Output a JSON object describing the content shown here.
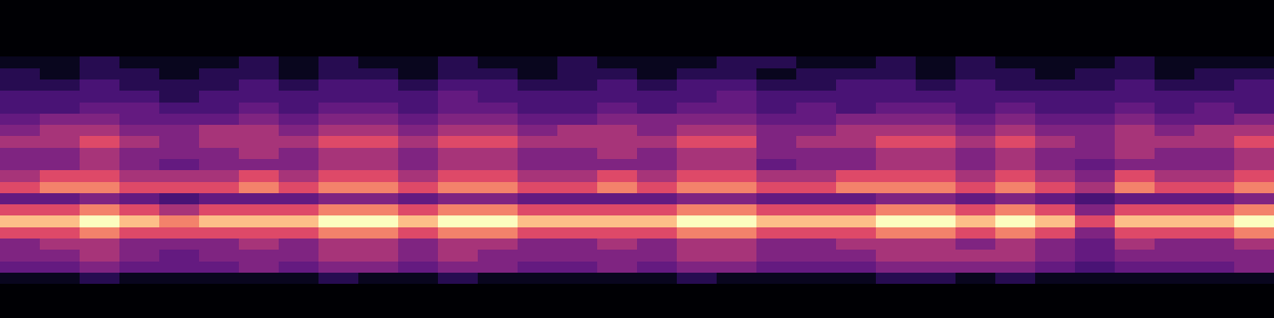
{
  "chart_data": {
    "type": "heatmap",
    "tick_labels": false,
    "cells": [
      [
        0,
        0,
        0,
        0,
        0,
        0,
        0,
        0,
        0,
        0,
        0,
        0,
        0,
        0,
        0,
        0,
        0,
        0,
        0,
        0,
        0,
        0,
        0,
        0,
        0,
        0,
        0,
        0,
        0,
        0,
        0,
        0
      ],
      [
        0,
        0,
        0,
        0,
        0,
        0,
        0,
        0,
        0,
        0,
        0,
        0,
        0,
        0,
        0,
        0,
        0,
        0,
        0,
        0,
        0,
        0,
        0,
        0,
        0,
        0,
        0,
        0,
        0,
        0,
        0,
        0
      ],
      [
        0,
        0,
        0,
        0,
        0,
        0,
        0,
        0,
        0,
        0,
        0,
        0,
        0,
        0,
        0,
        0,
        0,
        0,
        0,
        0,
        0,
        0,
        0,
        0,
        0,
        0,
        0,
        0,
        0,
        0,
        0,
        0
      ],
      [
        0,
        0,
        0,
        0,
        0,
        0,
        0,
        0,
        0,
        0,
        0,
        0,
        0,
        0,
        0,
        0,
        0,
        0,
        0,
        0,
        0,
        0,
        0,
        0,
        0,
        0,
        0,
        0,
        0,
        0,
        0,
        0
      ],
      [
        0,
        0,
        0,
        0,
        0,
        0,
        0,
        0,
        0,
        0,
        0,
        0,
        0,
        0,
        0,
        0,
        0,
        0,
        0,
        0,
        0,
        0,
        0,
        0,
        0,
        0,
        0,
        0,
        0,
        0,
        0,
        0
      ],
      [
        1,
        1,
        2,
        1,
        1,
        1,
        2,
        1,
        2,
        1,
        1,
        2,
        1,
        1,
        2,
        1,
        1,
        1,
        2,
        2,
        1,
        1,
        2,
        1,
        2,
        1,
        1,
        1,
        2,
        1,
        1,
        1
      ],
      [
        2,
        1,
        2,
        2,
        1,
        2,
        2,
        1,
        2,
        2,
        1,
        2,
        2,
        1,
        2,
        2,
        1,
        2,
        2,
        1,
        2,
        2,
        2,
        1,
        2,
        2,
        1,
        2,
        2,
        1,
        2,
        2
      ],
      [
        2,
        2,
        3,
        2,
        2,
        2,
        3,
        2,
        3,
        3,
        2,
        3,
        3,
        2,
        2,
        3,
        2,
        3,
        3,
        2,
        2,
        3,
        3,
        2,
        3,
        2,
        2,
        2,
        3,
        2,
        2,
        3
      ],
      [
        3,
        3,
        3,
        3,
        2,
        3,
        3,
        3,
        3,
        3,
        3,
        4,
        3,
        3,
        3,
        3,
        3,
        3,
        4,
        3,
        3,
        3,
        3,
        3,
        3,
        3,
        3,
        3,
        3,
        3,
        3,
        3
      ],
      [
        3,
        3,
        4,
        4,
        3,
        3,
        4,
        3,
        4,
        4,
        3,
        4,
        4,
        3,
        3,
        4,
        3,
        4,
        4,
        3,
        4,
        3,
        4,
        4,
        3,
        4,
        3,
        3,
        4,
        3,
        4,
        3
      ],
      [
        4,
        5,
        5,
        4,
        4,
        4,
        5,
        4,
        5,
        5,
        4,
        5,
        5,
        4,
        4,
        5,
        5,
        5,
        5,
        4,
        4,
        5,
        5,
        5,
        4,
        5,
        4,
        4,
        5,
        4,
        4,
        5
      ],
      [
        5,
        6,
        6,
        5,
        5,
        6,
        6,
        5,
        6,
        6,
        5,
        6,
        6,
        5,
        6,
        6,
        5,
        6,
        6,
        5,
        5,
        6,
        6,
        6,
        5,
        6,
        5,
        5,
        6,
        5,
        6,
        6
      ],
      [
        6,
        6,
        7,
        6,
        5,
        6,
        6,
        6,
        7,
        7,
        6,
        7,
        7,
        6,
        6,
        6,
        6,
        7,
        7,
        5,
        6,
        6,
        7,
        7,
        6,
        7,
        6,
        5,
        6,
        6,
        6,
        7
      ],
      [
        5,
        5,
        6,
        5,
        5,
        5,
        6,
        5,
        6,
        6,
        5,
        6,
        6,
        5,
        5,
        6,
        5,
        6,
        6,
        5,
        5,
        5,
        6,
        6,
        5,
        6,
        5,
        5,
        6,
        5,
        5,
        6
      ],
      [
        5,
        5,
        6,
        5,
        4,
        5,
        5,
        5,
        6,
        6,
        5,
        6,
        6,
        5,
        5,
        5,
        5,
        6,
        6,
        4,
        5,
        5,
        6,
        6,
        5,
        6,
        5,
        4,
        5,
        5,
        5,
        6
      ],
      [
        6,
        7,
        7,
        6,
        6,
        6,
        7,
        6,
        7,
        7,
        6,
        7,
        7,
        6,
        6,
        7,
        6,
        7,
        7,
        6,
        6,
        7,
        7,
        7,
        6,
        7,
        6,
        5,
        7,
        6,
        6,
        7
      ],
      [
        7,
        8,
        8,
        7,
        7,
        7,
        8,
        7,
        8,
        8,
        7,
        8,
        8,
        7,
        7,
        8,
        7,
        8,
        8,
        7,
        7,
        8,
        8,
        8,
        7,
        8,
        7,
        6,
        8,
        7,
        7,
        8
      ],
      [
        4,
        4,
        5,
        4,
        3,
        4,
        4,
        4,
        5,
        5,
        4,
        5,
        5,
        4,
        4,
        4,
        4,
        5,
        5,
        4,
        4,
        4,
        5,
        5,
        4,
        5,
        4,
        3,
        4,
        4,
        4,
        5
      ],
      [
        7,
        7,
        8,
        7,
        6,
        7,
        7,
        7,
        8,
        8,
        7,
        8,
        8,
        7,
        7,
        7,
        7,
        8,
        8,
        7,
        7,
        7,
        8,
        8,
        7,
        8,
        7,
        5,
        7,
        7,
        7,
        8
      ],
      [
        9,
        9,
        10,
        9,
        8,
        9,
        9,
        9,
        10,
        10,
        9,
        10,
        10,
        9,
        9,
        9,
        9,
        10,
        10,
        9,
        9,
        9,
        10,
        10,
        9,
        10,
        9,
        7,
        9,
        9,
        9,
        10
      ],
      [
        7,
        7,
        8,
        7,
        7,
        7,
        7,
        7,
        8,
        8,
        7,
        8,
        8,
        7,
        7,
        7,
        7,
        8,
        8,
        7,
        7,
        7,
        8,
        8,
        7,
        8,
        7,
        5,
        7,
        7,
        7,
        8
      ],
      [
        5,
        6,
        6,
        5,
        5,
        5,
        6,
        5,
        6,
        6,
        5,
        6,
        6,
        5,
        5,
        6,
        5,
        6,
        6,
        5,
        5,
        6,
        6,
        6,
        5,
        6,
        5,
        4,
        6,
        5,
        5,
        6
      ],
      [
        5,
        5,
        6,
        5,
        4,
        5,
        5,
        5,
        6,
        6,
        5,
        6,
        5,
        5,
        5,
        5,
        5,
        6,
        6,
        5,
        5,
        5,
        6,
        6,
        6,
        6,
        5,
        4,
        5,
        5,
        5,
        5
      ],
      [
        4,
        4,
        5,
        4,
        4,
        4,
        5,
        4,
        5,
        5,
        4,
        5,
        5,
        4,
        4,
        5,
        4,
        5,
        5,
        4,
        4,
        4,
        5,
        5,
        5,
        5,
        4,
        3,
        4,
        4,
        4,
        5
      ],
      [
        1,
        1,
        2,
        1,
        1,
        1,
        1,
        1,
        2,
        1,
        1,
        2,
        1,
        1,
        1,
        1,
        1,
        2,
        1,
        1,
        1,
        1,
        2,
        2,
        1,
        2,
        1,
        1,
        1,
        1,
        1,
        1
      ],
      [
        0,
        0,
        0,
        0,
        0,
        0,
        0,
        0,
        0,
        0,
        0,
        0,
        0,
        0,
        0,
        0,
        0,
        0,
        0,
        0,
        0,
        0,
        0,
        0,
        0,
        0,
        0,
        0,
        0,
        0,
        0,
        0
      ],
      [
        0,
        0,
        0,
        0,
        0,
        0,
        0,
        0,
        0,
        0,
        0,
        0,
        0,
        0,
        0,
        0,
        0,
        0,
        0,
        0,
        0,
        0,
        0,
        0,
        0,
        0,
        0,
        0,
        0,
        0,
        0,
        0
      ],
      [
        0,
        0,
        0,
        0,
        0,
        0,
        0,
        0,
        0,
        0,
        0,
        0,
        0,
        0,
        0,
        0,
        0,
        0,
        0,
        0,
        0,
        0,
        0,
        0,
        0,
        0,
        0,
        0,
        0,
        0,
        0,
        0
      ]
    ]
  }
}
